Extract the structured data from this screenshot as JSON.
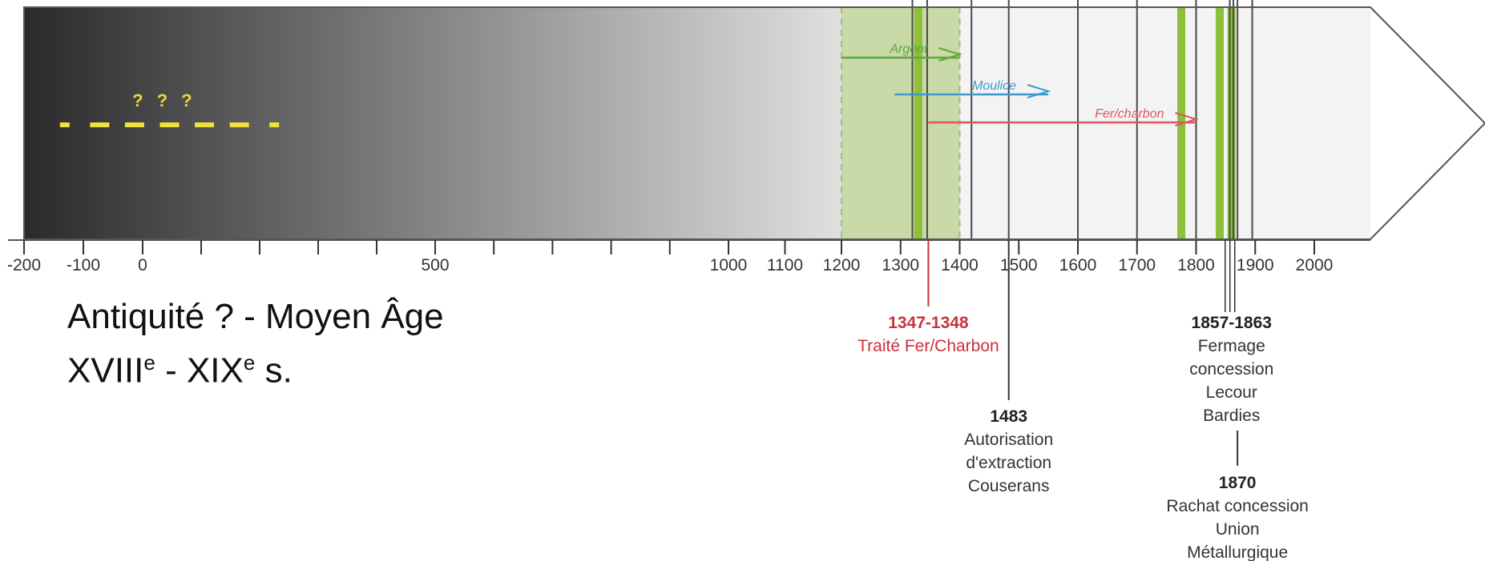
{
  "timeline": {
    "ticks": [
      {
        "year": -200,
        "label": "-200"
      },
      {
        "year": -100,
        "label": "-100"
      },
      {
        "year": 0,
        "label": "0"
      },
      {
        "year": 100,
        "label": ""
      },
      {
        "year": 200,
        "label": ""
      },
      {
        "year": 300,
        "label": ""
      },
      {
        "year": 400,
        "label": ""
      },
      {
        "year": 500,
        "label": "500"
      },
      {
        "year": 600,
        "label": ""
      },
      {
        "year": 700,
        "label": ""
      },
      {
        "year": 800,
        "label": ""
      },
      {
        "year": 900,
        "label": ""
      },
      {
        "year": 1000,
        "label": "1000"
      },
      {
        "year": 1100,
        "label": "1100"
      },
      {
        "year": 1200,
        "label": "1200"
      },
      {
        "year": 1300,
        "label": "1300"
      },
      {
        "year": 1400,
        "label": "1400"
      },
      {
        "year": 1500,
        "label": "1500"
      },
      {
        "year": 1600,
        "label": "1600"
      },
      {
        "year": 1700,
        "label": "1700"
      },
      {
        "year": 1800,
        "label": "1800"
      },
      {
        "year": 1900,
        "label": "1900"
      },
      {
        "year": 2000,
        "label": "2000"
      }
    ],
    "uncertain_marker": "?",
    "uncertain_range": [
      -100,
      200
    ],
    "highlight_period": {
      "start": 1200,
      "end": 1400,
      "color": "#c9d9a8"
    },
    "green_bars": [
      1330,
      1775,
      1840,
      1860
    ],
    "vertical_lines": [
      1320,
      1345,
      1420,
      1483,
      1600,
      1700,
      1800,
      1857,
      1863,
      1870,
      1895
    ],
    "arrows": [
      {
        "label": "Argent",
        "start": 1200,
        "end": 1400,
        "color": "#5aaa3c"
      },
      {
        "label": "Moulice",
        "start": 1290,
        "end": 1550,
        "color": "#3a9ad0"
      },
      {
        "label": "Fer/charbon",
        "start": 1347,
        "end": 1800,
        "color": "#d9585e"
      }
    ],
    "events": [
      {
        "year": 1347,
        "date": "1347-1348",
        "lines": [
          "Traité Fer/Charbon"
        ],
        "color": "#c9323c"
      },
      {
        "year": 1483,
        "date": "1483",
        "lines": [
          "Autorisation",
          "d'extraction",
          "Couserans"
        ],
        "color": "#222222"
      },
      {
        "year": 1860,
        "date": "1857-1863",
        "lines": [
          "Fermage",
          "concession",
          "Lecour",
          "Bardies"
        ],
        "color": "#222222"
      },
      {
        "year": 1870,
        "date": "1870",
        "lines": [
          "Rachat concession",
          "Union",
          "Métallurgique"
        ],
        "color": "#222222"
      }
    ],
    "colors": {
      "gradient_start": "#2a2a2c",
      "gradient_end": "#ececec",
      "uncertain_dash": "#f0e23a",
      "outline": "#555555"
    }
  },
  "caption": {
    "line1": "Antiquité ? - Moyen Âge",
    "line2_a": "XVIII",
    "line2_sup_a": "e",
    "line2_b": " - XIX",
    "line2_sup_b": "e",
    "line2_c": " s."
  }
}
